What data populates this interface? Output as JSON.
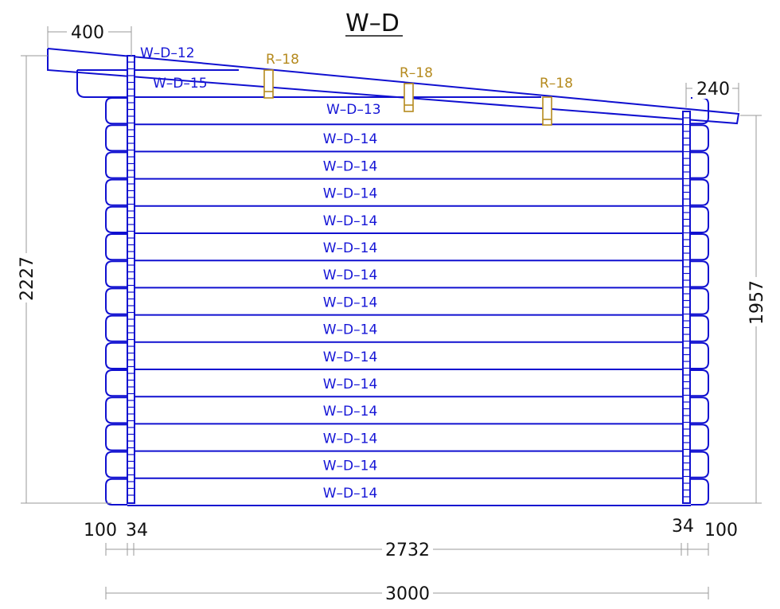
{
  "title": "W–D",
  "colors": {
    "timber": "#1010d0",
    "purlin": "#b58a1e",
    "dimension": "#9a9a9a",
    "text": "#111111"
  },
  "labels": {
    "top_gable": "W–D–12",
    "upper_gable": "W–D–15",
    "top_log": "W–D–13",
    "log": "W–D–14",
    "purlin": "R–18"
  },
  "log_count": 14,
  "dimensions": {
    "overhang_left": "400",
    "overhang_right": "240",
    "total_height": "2227",
    "wall_height": "1957",
    "end_left": "100",
    "post_left": "34",
    "inner_width": "2732",
    "post_right": "34",
    "end_right": "100",
    "total_width": "3000"
  }
}
